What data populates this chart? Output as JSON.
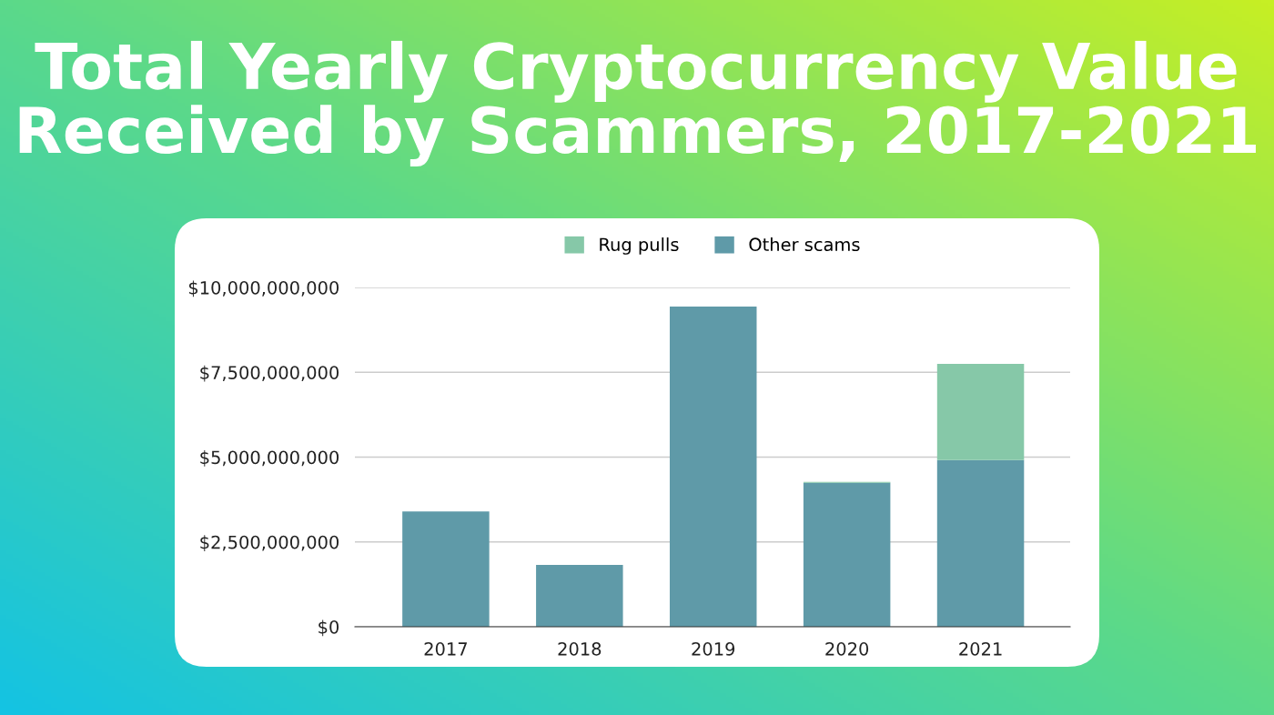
{
  "chart_data": {
    "type": "bar",
    "title": "Total Yearly Cryptocurrency Value\nReceived by Scammers, 2017-2021",
    "categories": [
      "2017",
      "2018",
      "2019",
      "2020",
      "2021"
    ],
    "stacked": true,
    "series": [
      {
        "name": "Other scams",
        "color": "#5f9aa8",
        "values": [
          3400000000,
          1820000000,
          9440000000,
          4240000000,
          4910000000
        ]
      },
      {
        "name": "Rug pulls",
        "color": "#86c8a8",
        "values": [
          0,
          0,
          0,
          30000000,
          2840000000
        ]
      }
    ],
    "ylim": [
      0,
      10000000000
    ],
    "yticks": [
      {
        "value": 0,
        "label": "$0"
      },
      {
        "value": 2500000000,
        "label": "$2,500,000,000"
      },
      {
        "value": 5000000000,
        "label": "$5,000,000,000"
      },
      {
        "value": 7500000000,
        "label": "$7,500,000,000"
      },
      {
        "value": 10000000000,
        "label": "$10,000,000,000"
      }
    ],
    "grid": "y",
    "legend": "top"
  }
}
